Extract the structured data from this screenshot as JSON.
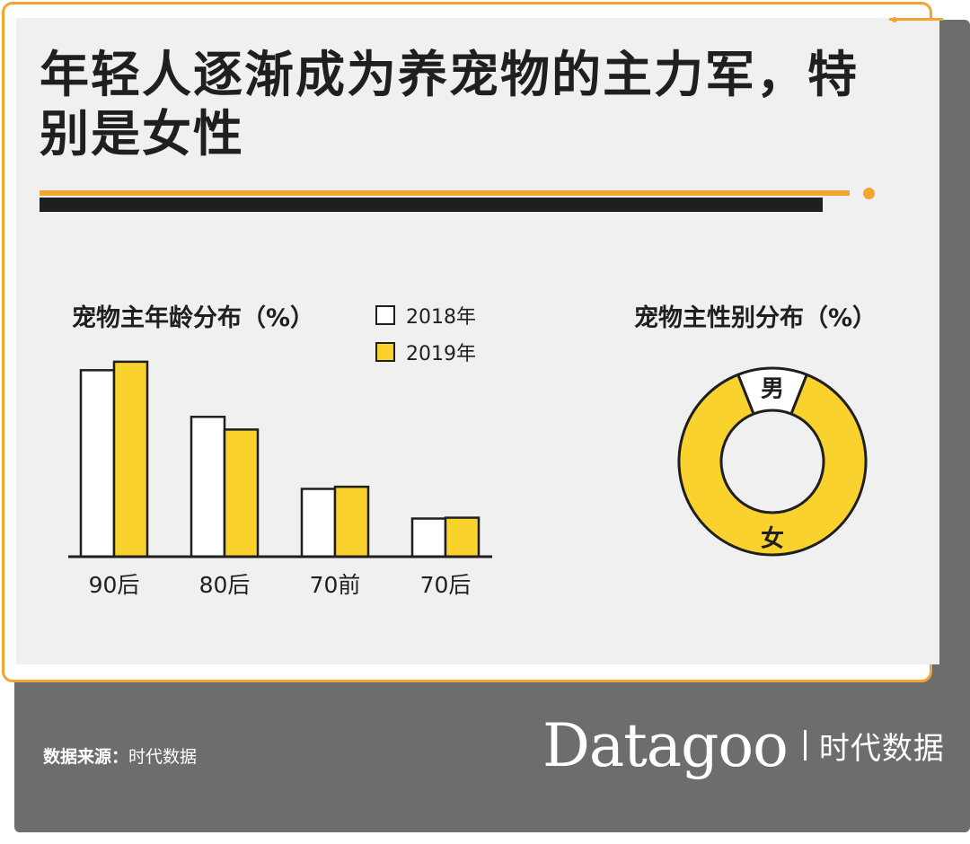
{
  "title": "年轻人逐渐成为养宠物的主力军，特别是女性",
  "footer": {
    "source_label": "数据来源：",
    "source_value": "时代数据",
    "brand_logo": "Datagoo",
    "brand_cn": "时代数据"
  },
  "colors": {
    "accent": "#f2a531",
    "yellow": "#f9d22e",
    "white": "#ffffff",
    "dark": "#1f1f1f",
    "panel": "#f0f0f0",
    "footer": "#6d6d6d"
  },
  "chart_data": [
    {
      "type": "bar",
      "title": "宠物主年龄分布（%）",
      "categories": [
        "90后",
        "80后",
        "70前",
        "70后"
      ],
      "series": [
        {
          "name": "2018年",
          "color": "#ffffff",
          "values": [
            44,
            33,
            16,
            9
          ]
        },
        {
          "name": "2019年",
          "color": "#f9d22e",
          "values": [
            46,
            30,
            16.5,
            9.2
          ]
        }
      ],
      "ylim": [
        0,
        50
      ],
      "legend": "top-right",
      "axis_labels_shown": false,
      "grid": false
    },
    {
      "type": "pie",
      "variant": "donut",
      "title": "宠物主性别分布（%）",
      "labels": [
        "男",
        "女"
      ],
      "values": [
        12,
        88
      ],
      "colors": [
        "#ffffff",
        "#f9d22e"
      ]
    }
  ]
}
